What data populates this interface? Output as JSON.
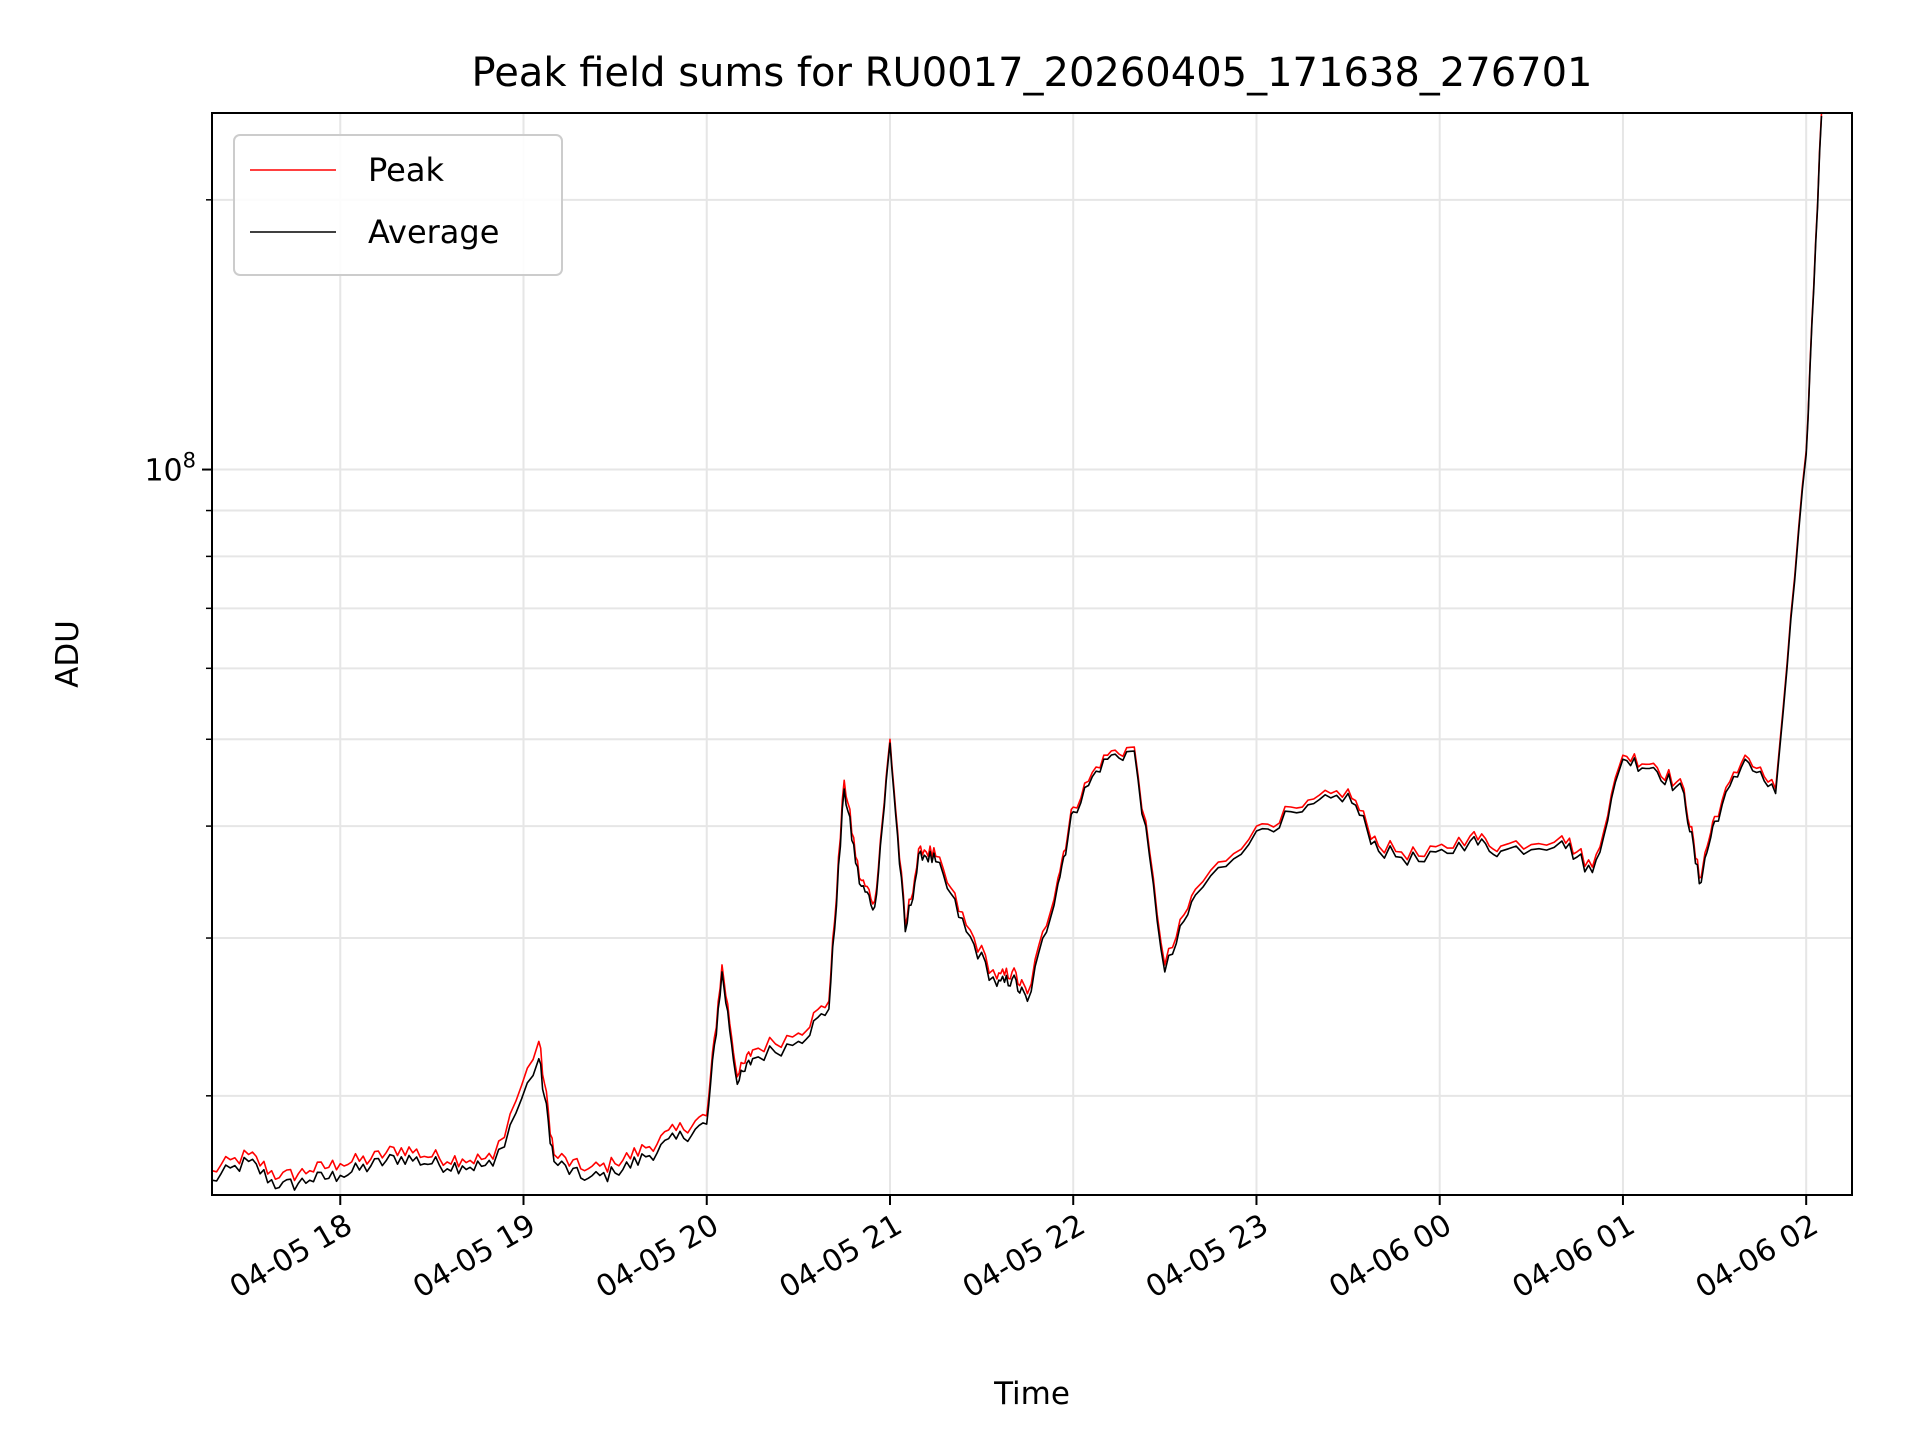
{
  "chart_data": {
    "type": "line",
    "title": "Peak field sums for RU0017_20260405_171638_276701",
    "xlabel": "Time",
    "ylabel": "ADU",
    "y_scale": "log",
    "ylim": [
      15500000,
      250000000
    ],
    "xlim": [
      "2026-04-05 17:18",
      "2026-04-06 02:15"
    ],
    "grid": true,
    "legend_position": "upper-left",
    "x_tick_labels": [
      "04-05 18",
      "04-05 19",
      "04-05 20",
      "04-05 21",
      "04-05 22",
      "04-05 23",
      "04-06 00",
      "04-06 01",
      "04-06 02"
    ],
    "x_tick_times": [
      "2026-04-05 18:00",
      "2026-04-05 19:00",
      "2026-04-05 20:00",
      "2026-04-05 21:00",
      "2026-04-05 22:00",
      "2026-04-05 23:00",
      "2026-04-06 00:00",
      "2026-04-06 01:00",
      "2026-04-06 02:00"
    ],
    "y_major_tick": {
      "value": 100000000,
      "base": "10",
      "exponent": "8"
    },
    "y_minor_ticks": [
      20000000,
      30000000,
      40000000,
      50000000,
      60000000,
      70000000,
      80000000,
      90000000,
      200000000
    ],
    "x": [
      "2026-04-05 17:18",
      "2026-04-05 17:30",
      "2026-04-05 17:40",
      "2026-04-05 17:50",
      "2026-04-05 18:00",
      "2026-04-05 18:10",
      "2026-04-05 18:20",
      "2026-04-05 18:30",
      "2026-04-05 18:40",
      "2026-04-05 18:50",
      "2026-04-05 19:05",
      "2026-04-05 19:10",
      "2026-04-05 19:20",
      "2026-04-05 19:30",
      "2026-04-05 19:40",
      "2026-04-05 19:50",
      "2026-04-05 20:00",
      "2026-04-05 20:05",
      "2026-04-05 20:10",
      "2026-04-05 20:15",
      "2026-04-05 20:30",
      "2026-04-05 20:40",
      "2026-04-05 20:45",
      "2026-04-05 20:50",
      "2026-04-05 20:55",
      "2026-04-05 21:00",
      "2026-04-05 21:05",
      "2026-04-05 21:10",
      "2026-04-05 21:15",
      "2026-04-05 21:25",
      "2026-04-05 21:35",
      "2026-04-05 21:40",
      "2026-04-05 21:45",
      "2026-04-05 21:55",
      "2026-04-05 22:00",
      "2026-04-05 22:10",
      "2026-04-05 22:20",
      "2026-04-05 22:30",
      "2026-04-05 22:40",
      "2026-04-05 23:00",
      "2026-04-05 23:15",
      "2026-04-05 23:30",
      "2026-04-05 23:40",
      "2026-04-05 23:55",
      "2026-04-06 00:10",
      "2026-04-06 00:20",
      "2026-04-06 00:40",
      "2026-04-06 00:50",
      "2026-04-06 01:00",
      "2026-04-06 01:10",
      "2026-04-06 01:20",
      "2026-04-06 01:25",
      "2026-04-06 01:30",
      "2026-04-06 01:40",
      "2026-04-06 01:50",
      "2026-04-06 02:00",
      "2026-04-06 02:05"
    ],
    "series": [
      {
        "name": "Peak",
        "color": "#ff0000",
        "values": [
          16500000,
          17200000,
          16200000,
          16500000,
          16800000,
          17000000,
          17500000,
          17100000,
          17000000,
          17000000,
          23000000,
          17200000,
          16500000,
          16800000,
          17500000,
          18300000,
          19000000,
          28000000,
          21000000,
          22500000,
          23500000,
          25500000,
          45000000,
          35000000,
          33000000,
          50000000,
          31000000,
          38000000,
          37000000,
          31000000,
          27000000,
          27500000,
          26000000,
          35000000,
          42000000,
          48000000,
          49000000,
          28000000,
          34000000,
          40000000,
          42000000,
          44000000,
          38000000,
          37000000,
          39000000,
          38000000,
          39000000,
          36000000,
          48000000,
          47000000,
          44000000,
          35000000,
          41000000,
          48000000,
          44000000,
          105000000,
          250000000
        ]
      },
      {
        "name": "Average",
        "color": "#000000",
        "values": [
          16100000,
          16900000,
          15800000,
          16100000,
          16300000,
          16700000,
          17100000,
          16800000,
          16700000,
          16700000,
          22000000,
          16900000,
          16100000,
          16400000,
          17100000,
          17900000,
          18600000,
          27500000,
          20600000,
          22000000,
          23000000,
          25000000,
          44000000,
          34500000,
          32500000,
          49500000,
          30500000,
          37500000,
          36500000,
          30500000,
          26500000,
          27000000,
          25500000,
          34500000,
          41500000,
          47500000,
          48500000,
          27500000,
          33500000,
          39500000,
          41500000,
          43500000,
          37500000,
          36500000,
          38500000,
          37500000,
          38500000,
          35500000,
          47500000,
          46500000,
          43500000,
          34500000,
          40500000,
          47500000,
          43500000,
          104000000,
          248000000
        ]
      }
    ]
  }
}
